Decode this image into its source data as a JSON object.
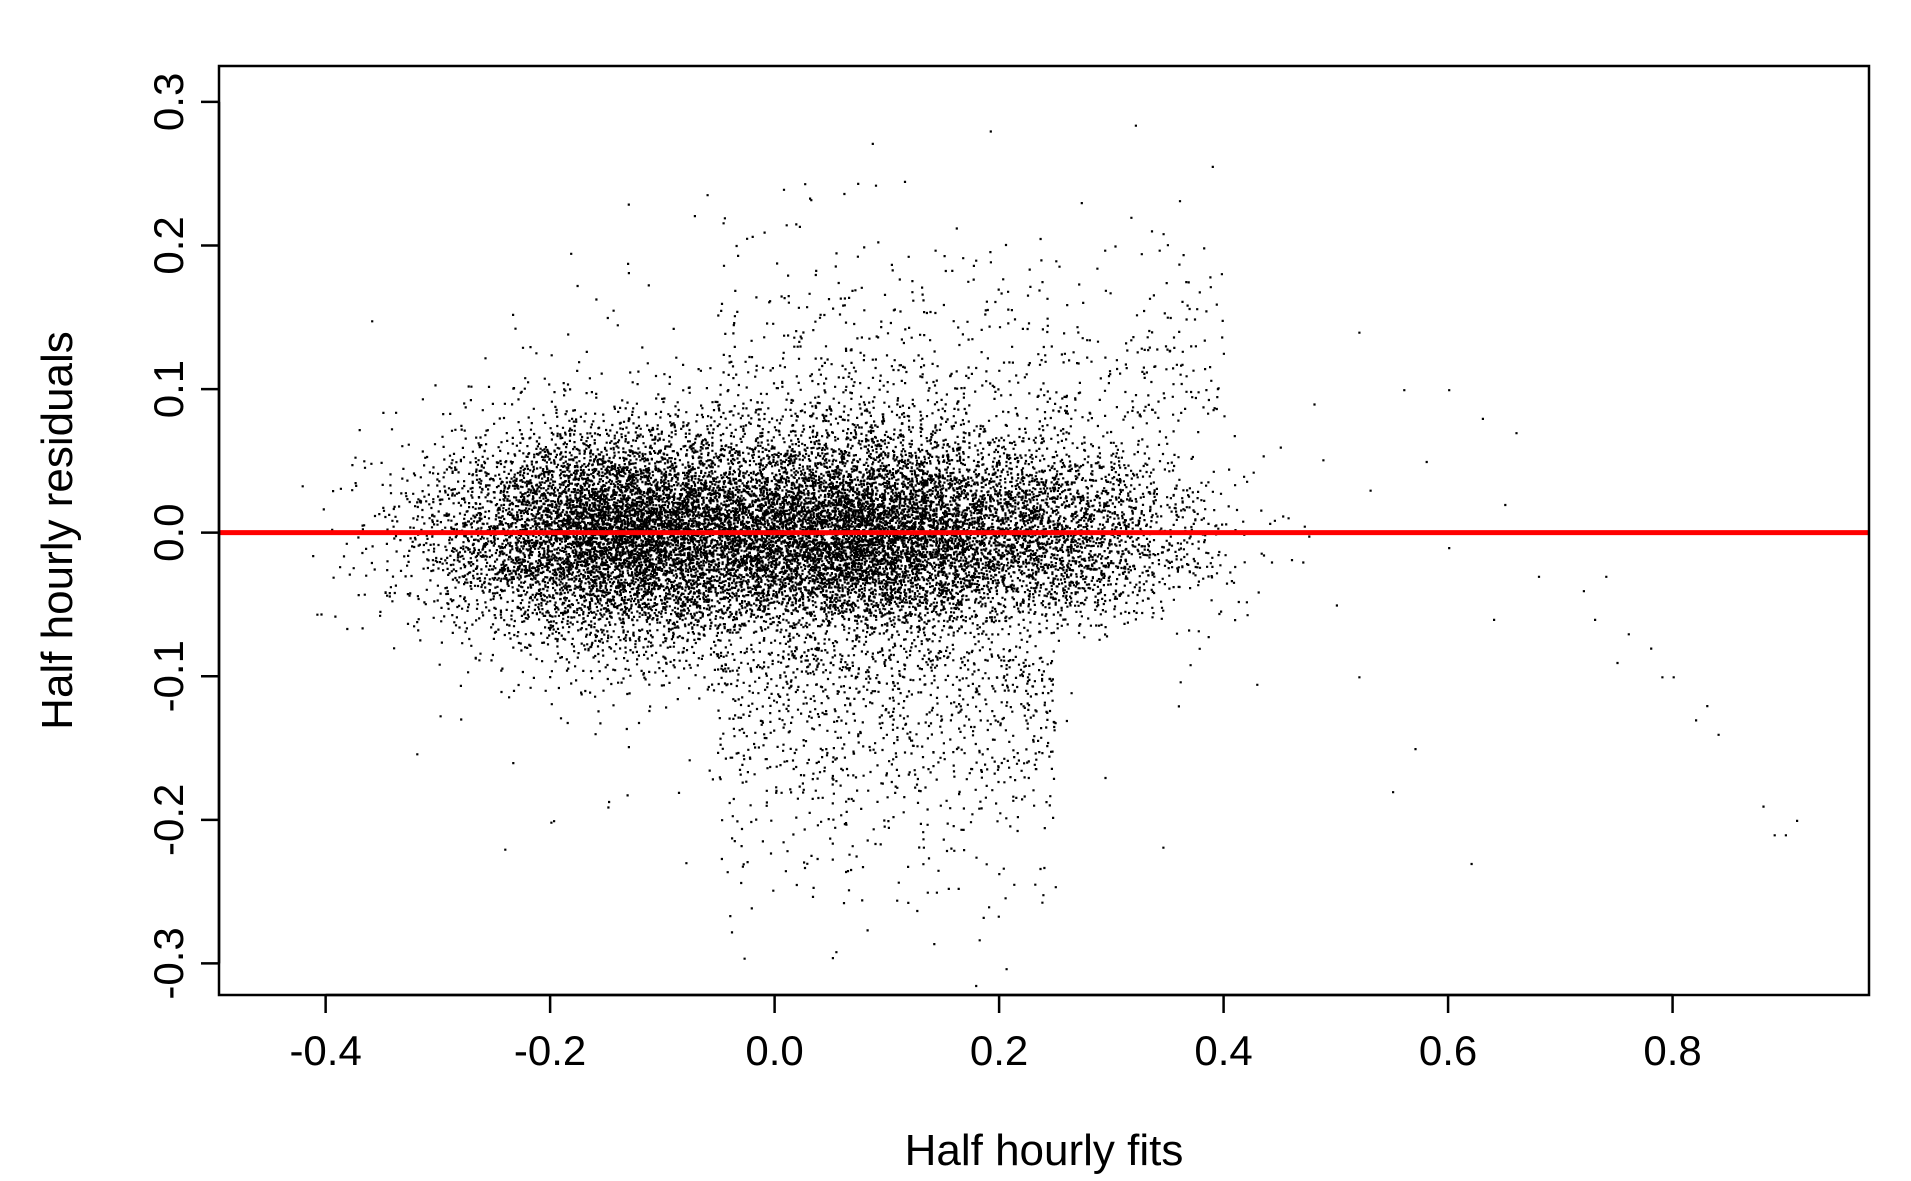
{
  "chart_data": {
    "type": "scatter",
    "title": "",
    "xlabel": "Half hourly fits",
    "ylabel": "Half hourly residuals",
    "xlim": [
      -0.495,
      0.975
    ],
    "ylim": [
      -0.322,
      0.325
    ],
    "xticks": [
      -0.4,
      -0.2,
      0.0,
      0.2,
      0.4,
      0.6,
      0.8
    ],
    "xtick_labels": [
      "-0.4",
      "-0.2",
      "0.0",
      "0.2",
      "0.4",
      "0.6",
      "0.8"
    ],
    "yticks": [
      -0.3,
      -0.2,
      -0.1,
      0.0,
      0.1,
      0.2,
      0.3
    ],
    "ytick_labels": [
      "-0.3",
      "-0.2",
      "-0.1",
      "0.0",
      "0.1",
      "0.2",
      "0.3"
    ],
    "grid": false,
    "legend": "none",
    "reference_line": {
      "y": 0.0,
      "color": "#ff0000"
    },
    "point_color": "#000000",
    "series": [
      {
        "description": "dense residual cloud",
        "clusters": [
          {
            "x_center": -0.13,
            "x_sd": 0.085,
            "y_sd": 0.036,
            "n": 9000
          },
          {
            "x_center": 0.08,
            "x_sd": 0.075,
            "y_sd": 0.036,
            "n": 7000
          },
          {
            "x_center": 0.25,
            "x_sd": 0.07,
            "y_sd": 0.032,
            "n": 2600
          }
        ],
        "sparse_tail": [
          [
            0.45,
            0.06
          ],
          [
            0.47,
            -0.02
          ],
          [
            0.48,
            0.09
          ],
          [
            0.5,
            -0.05
          ],
          [
            0.52,
            0.14
          ],
          [
            0.52,
            -0.1
          ],
          [
            0.53,
            0.03
          ],
          [
            0.55,
            -0.18
          ],
          [
            0.56,
            0.1
          ],
          [
            0.57,
            -0.15
          ],
          [
            0.58,
            0.05
          ],
          [
            0.6,
            0.1
          ],
          [
            0.6,
            -0.01
          ],
          [
            0.62,
            -0.23
          ],
          [
            0.63,
            0.08
          ],
          [
            0.64,
            -0.06
          ],
          [
            0.65,
            0.02
          ],
          [
            0.66,
            0.07
          ],
          [
            0.67,
            0.0
          ],
          [
            0.68,
            -0.03
          ],
          [
            0.7,
            0.0
          ],
          [
            0.71,
            0.0
          ],
          [
            0.72,
            -0.04
          ],
          [
            0.73,
            -0.06
          ],
          [
            0.74,
            -0.03
          ],
          [
            0.75,
            -0.09
          ],
          [
            0.76,
            -0.07
          ],
          [
            0.78,
            -0.08
          ],
          [
            0.79,
            -0.1
          ],
          [
            0.8,
            -0.1
          ],
          [
            0.82,
            -0.13
          ],
          [
            0.83,
            -0.12
          ],
          [
            0.84,
            -0.14
          ],
          [
            0.88,
            -0.19
          ],
          [
            0.89,
            -0.21
          ],
          [
            0.9,
            -0.21
          ],
          [
            0.91,
            -0.2
          ]
        ]
      }
    ]
  }
}
